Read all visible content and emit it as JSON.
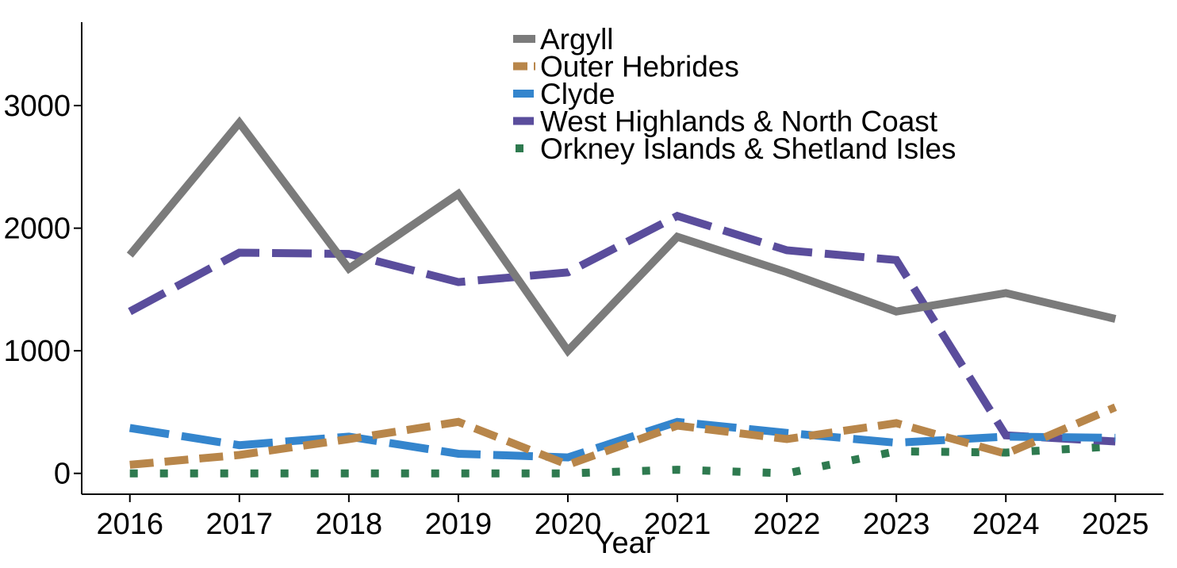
{
  "chart_data": {
    "type": "line",
    "title": "",
    "xlabel": "Year",
    "ylabel": "",
    "x": [
      2016,
      2017,
      2018,
      2019,
      2020,
      2021,
      2022,
      2023,
      2024,
      2025
    ],
    "x_tick_labels": [
      "2016",
      "2017",
      "2018",
      "2019",
      "2020",
      "2021",
      "2022",
      "2023",
      "2024",
      "2025"
    ],
    "y_ticks": [
      0,
      1000,
      2000,
      3000
    ],
    "y_tick_labels": [
      "0",
      "1000",
      "2000",
      "3000"
    ],
    "xlim": [
      2015.56,
      2025.44
    ],
    "ylim": [
      -170,
      3680
    ],
    "grid": false,
    "legend_position": "top-center",
    "series": [
      {
        "name": "Argyll",
        "color": "#7b7b7b",
        "style": "solid",
        "values": [
          1780,
          2860,
          1670,
          2280,
          1000,
          1930,
          1640,
          1320,
          1470,
          1260
        ]
      },
      {
        "name": "Outer Hebrides",
        "color": "#b8864a",
        "style": "dashed",
        "values": [
          70,
          150,
          280,
          420,
          70,
          390,
          280,
          410,
          160,
          540
        ]
      },
      {
        "name": "Clyde",
        "color": "#3485cd",
        "style": "longdash",
        "values": [
          370,
          230,
          300,
          160,
          130,
          420,
          330,
          250,
          300,
          290
        ]
      },
      {
        "name": "West Highlands & North Coast",
        "color": "#5a4d9c",
        "style": "longdash",
        "values": [
          1320,
          1800,
          1790,
          1560,
          1640,
          2100,
          1820,
          1740,
          310,
          260
        ]
      },
      {
        "name": "Orkney Islands & Shetland Isles",
        "color": "#2e7a4f",
        "style": "dotted",
        "values": [
          0,
          0,
          0,
          0,
          0,
          30,
          0,
          180,
          170,
          220
        ]
      }
    ]
  }
}
